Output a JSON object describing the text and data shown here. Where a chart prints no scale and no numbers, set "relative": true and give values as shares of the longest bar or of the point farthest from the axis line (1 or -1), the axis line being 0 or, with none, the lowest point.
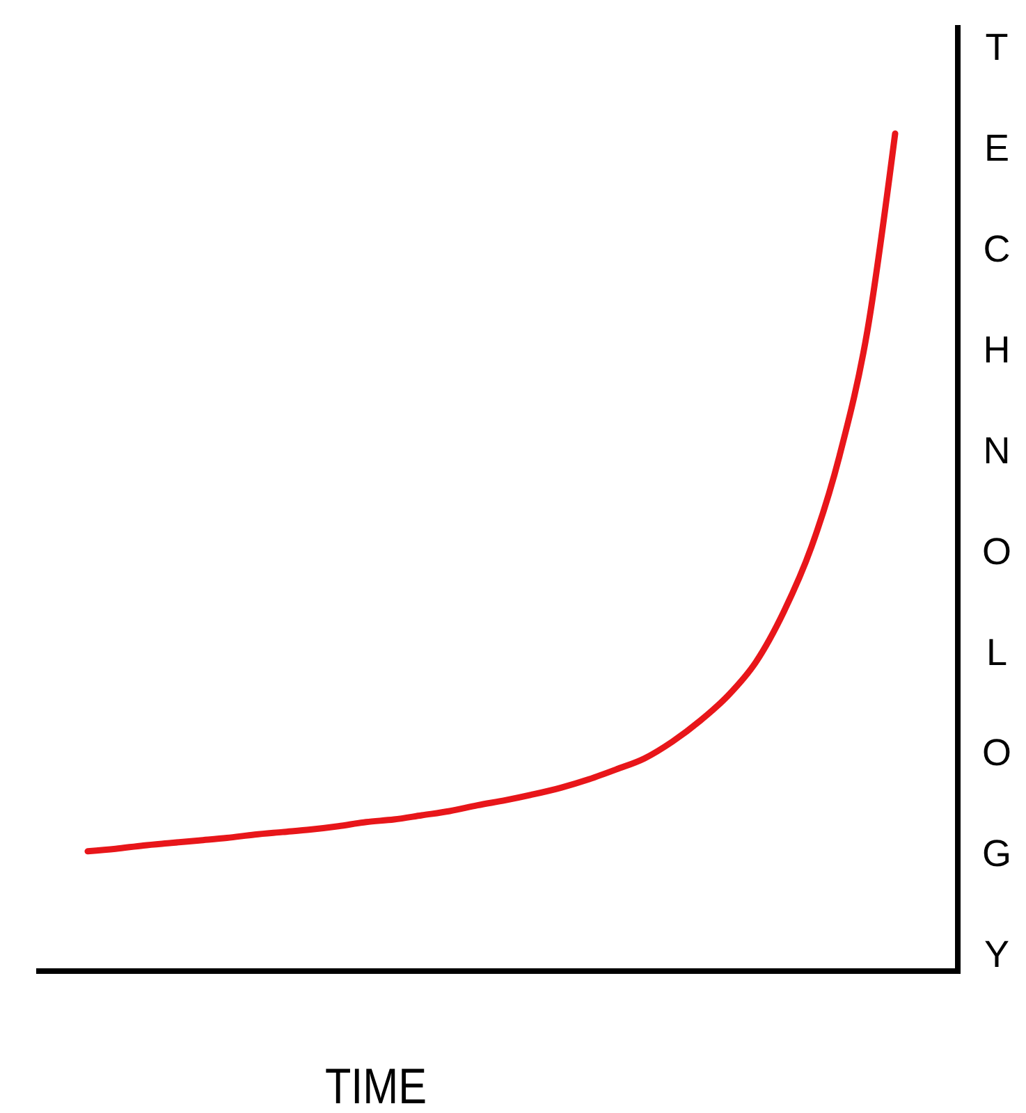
{
  "chart_data": {
    "type": "line",
    "xlabel": "TIME",
    "ylabel": "TECHNOLOGY",
    "relative": true,
    "color": "#e8161a",
    "categories": [
      null,
      null,
      null,
      null,
      null,
      null,
      null,
      null,
      null,
      null,
      null,
      null,
      null,
      null,
      null,
      null,
      null,
      null,
      null,
      null,
      null,
      null,
      null,
      null,
      null,
      null,
      null,
      null,
      null,
      null
    ],
    "values": [
      0.143,
      0.146,
      0.15,
      0.153,
      0.156,
      0.159,
      0.163,
      0.166,
      0.169,
      0.173,
      0.178,
      0.181,
      0.186,
      0.191,
      0.198,
      0.204,
      0.211,
      0.219,
      0.229,
      0.241,
      0.254,
      0.274,
      0.299,
      0.329,
      0.369,
      0.429,
      0.507,
      0.615,
      0.764,
      1
    ]
  }
}
